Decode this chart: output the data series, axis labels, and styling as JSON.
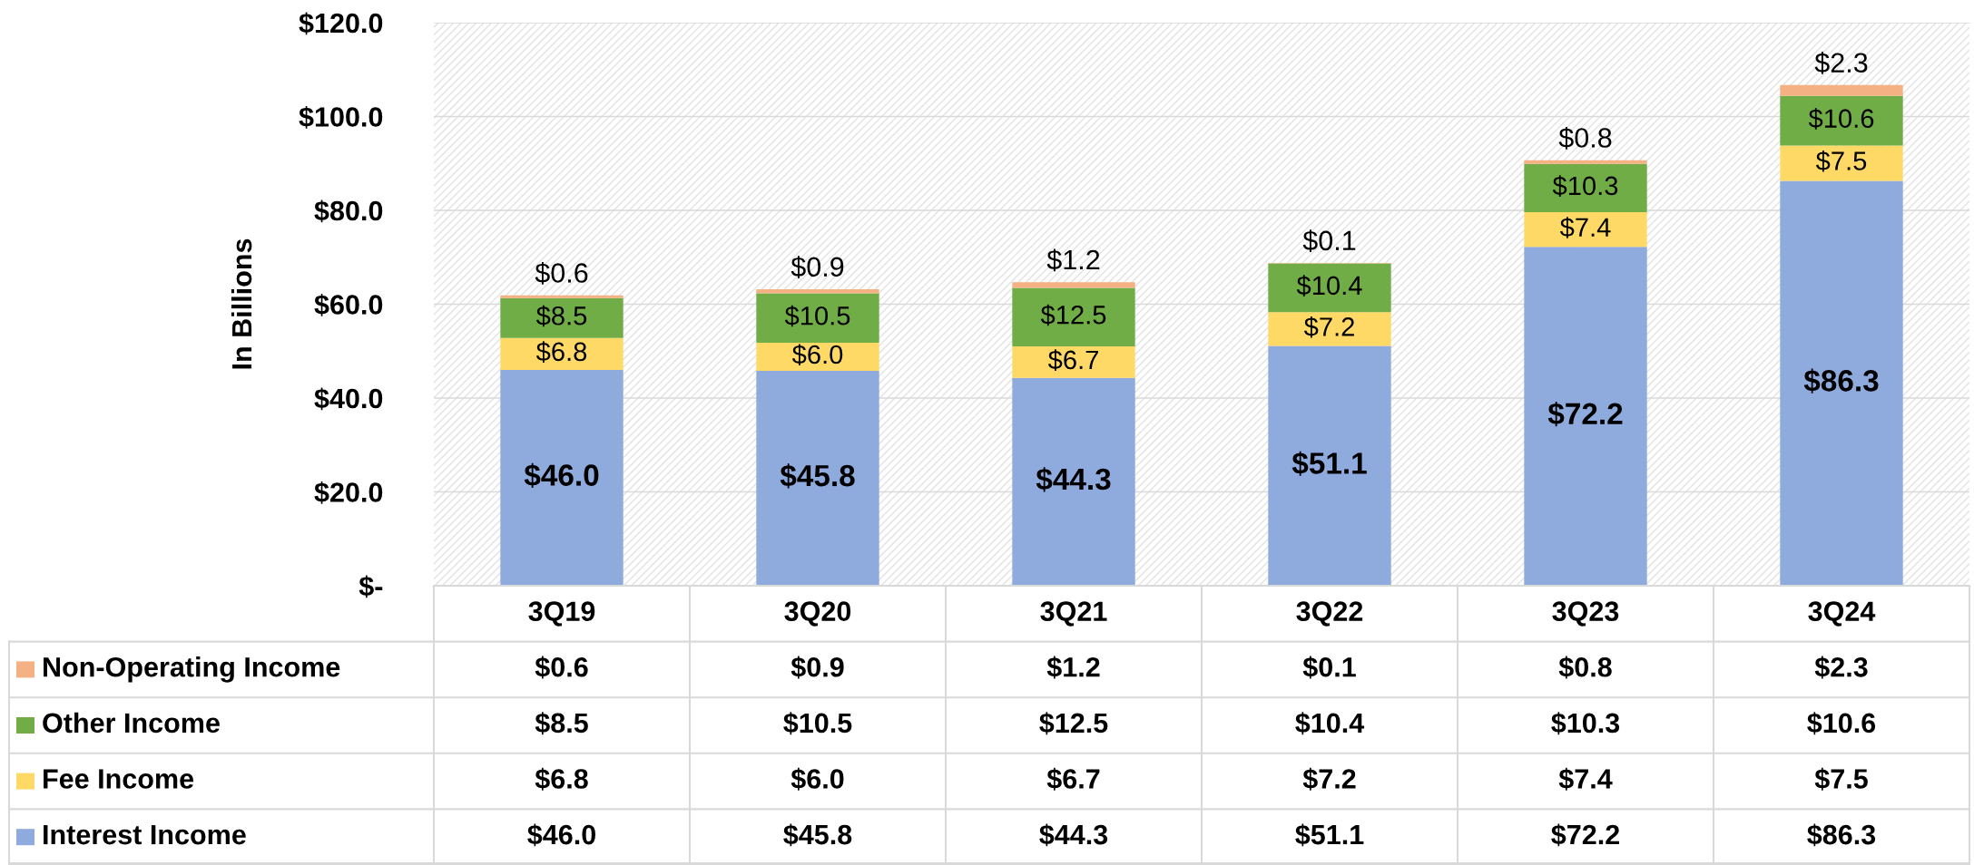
{
  "chart_data": {
    "type": "bar",
    "stacked": true,
    "ylabel": "In Billions",
    "categories": [
      "3Q19",
      "3Q20",
      "3Q21",
      "3Q22",
      "3Q23",
      "3Q24"
    ],
    "ylim": [
      0,
      120
    ],
    "yticks": [
      {
        "value": 0,
        "label": "$-"
      },
      {
        "value": 20,
        "label": "$20.0"
      },
      {
        "value": 40,
        "label": "$40.0"
      },
      {
        "value": 60,
        "label": "$60.0"
      },
      {
        "value": 80,
        "label": "$80.0"
      },
      {
        "value": 100,
        "label": "$100.0"
      },
      {
        "value": 120,
        "label": "$120.0"
      }
    ],
    "grid": "y",
    "legend": "bottom left",
    "series": [
      {
        "name": "Interest Income",
        "color": "#8faadc",
        "values": [
          46.0,
          45.8,
          44.3,
          51.1,
          72.2,
          86.3
        ],
        "value_labels": [
          "$46.0",
          "$45.8",
          "$44.3",
          "$51.1",
          "$72.2",
          "$86.3"
        ]
      },
      {
        "name": "Fee Income",
        "color": "#ffd966",
        "values": [
          6.8,
          6.0,
          6.7,
          7.2,
          7.4,
          7.5
        ],
        "value_labels": [
          "$6.8",
          "$6.0",
          "$6.7",
          "$7.2",
          "$7.4",
          "$7.5"
        ]
      },
      {
        "name": "Other Income",
        "color": "#70ad47",
        "values": [
          8.5,
          10.5,
          12.5,
          10.4,
          10.3,
          10.6
        ],
        "value_labels": [
          "$8.5",
          "$10.5",
          "$12.5",
          "$10.4",
          "$10.3",
          "$10.6"
        ]
      },
      {
        "name": "Non-Operating Income",
        "color": "#f4b183",
        "values": [
          0.6,
          0.9,
          1.2,
          0.1,
          0.8,
          2.3
        ],
        "value_labels": [
          "$0.6",
          "$0.9",
          "$1.2",
          "$0.1",
          "$0.8",
          "$2.3"
        ]
      }
    ]
  }
}
